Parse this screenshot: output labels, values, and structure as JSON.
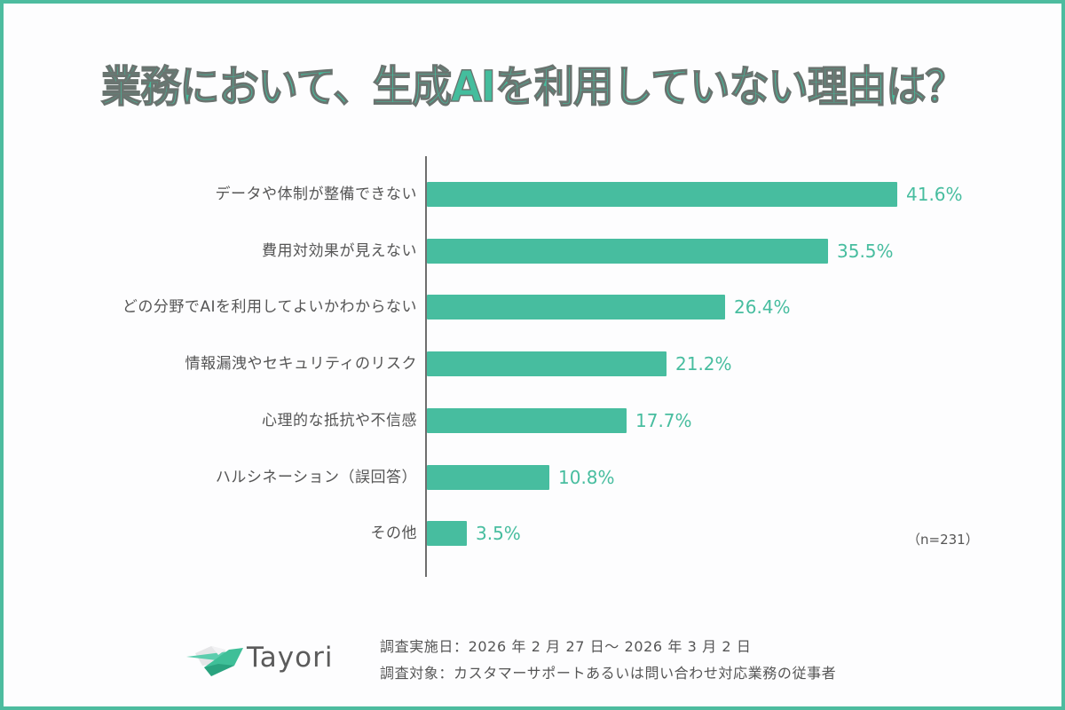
{
  "title": "業務において、生成AIを利用していない理由は？",
  "colors": {
    "accent": "#47bd9f",
    "frame": "#4dbc9f",
    "text": "#555555",
    "axis": "#6e6e6e"
  },
  "chart_data": {
    "type": "bar",
    "orientation": "horizontal",
    "title": "業務において、生成AIを利用していない理由は？",
    "categories": [
      "データや体制が整備できない",
      "費用対効果が見えない",
      "どの分野でAIを利用してよいかわからない",
      "情報漏洩やセキュリティのリスク",
      "心理的な抵抗や不信感",
      "ハルシネーション（誤回答）",
      "その他"
    ],
    "values": [
      41.6,
      35.5,
      26.4,
      21.2,
      17.7,
      10.8,
      3.5
    ],
    "value_labels": [
      "41.6%",
      "35.5%",
      "26.4%",
      "21.2%",
      "17.7%",
      "10.8%",
      "3.5%"
    ],
    "unit": "%",
    "xlabel": "",
    "ylabel": "",
    "grid": false,
    "legend": null,
    "sample_size": "（n=231）"
  },
  "rows": [
    {
      "label": "データや体制が整備できない",
      "value": "41.6%"
    },
    {
      "label": "費用対効果が見えない",
      "value": "35.5%"
    },
    {
      "label": "どの分野でAIを利用してよいかわからない",
      "value": "26.4%"
    },
    {
      "label": "情報漏洩やセキュリティのリスク",
      "value": "21.2%"
    },
    {
      "label": "心理的な抵抗や不信感",
      "value": "17.7%"
    },
    {
      "label": "ハルシネーション（誤回答）",
      "value": "10.8%"
    },
    {
      "label": "その他",
      "value": "3.5%"
    }
  ],
  "n_note": "（n=231）",
  "logo": {
    "name": "Tayori",
    "icon": "paper-plane-envelope-icon"
  },
  "footer": {
    "survey_date": "調査実施日：2026 年 2 月 27 日～ 2026 年 3 月 2 日",
    "survey_target": "調査対象：カスタマーサポートあるいは問い合わせ対応業務の従事者"
  }
}
